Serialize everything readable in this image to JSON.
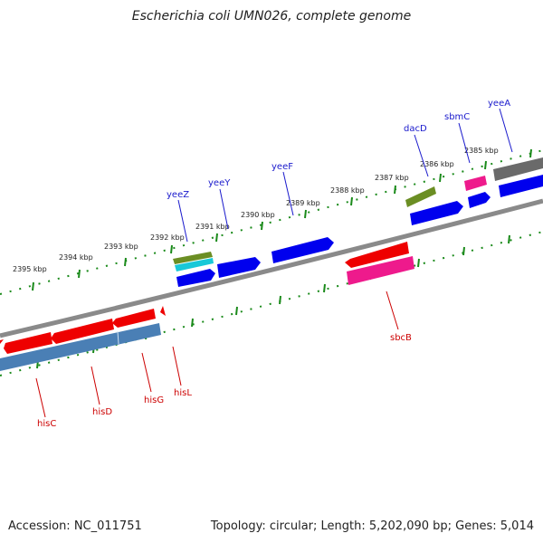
{
  "title": "Escherichia coli UMN026, complete genome",
  "footer": {
    "accession": "Accession: NC_011751",
    "topology": "Topology: circular; Length: 5,202,090 bp; Genes: 5,014"
  },
  "ticks": [
    "2395 kbp",
    "2394 kbp",
    "2393 kbp",
    "2392 kbp",
    "2391 kbp",
    "2390 kbp",
    "2389 kbp",
    "2388 kbp",
    "2387 kbp",
    "2386 kbp",
    "2385 kbp"
  ],
  "genes": {
    "forward": [
      "yeeZ",
      "yeeY",
      "yeeF",
      "dacD",
      "sbmC",
      "yeeA"
    ],
    "reverse": [
      "hisC",
      "hisD",
      "hisG",
      "hisL",
      "sbcB"
    ]
  },
  "colors": {
    "forward_label": "#1a1acc",
    "reverse_label": "#cc0000",
    "tick": "#1a8a1a",
    "backbone": "#808080",
    "cds_forward": "#0000ee",
    "cds_reverse": "#ee0000",
    "operon": "#4a7fb5",
    "olive": "#6b8e23",
    "pink": "#ee1a8c",
    "cyan": "#18c8d8",
    "grey": "#6a6a6a"
  }
}
